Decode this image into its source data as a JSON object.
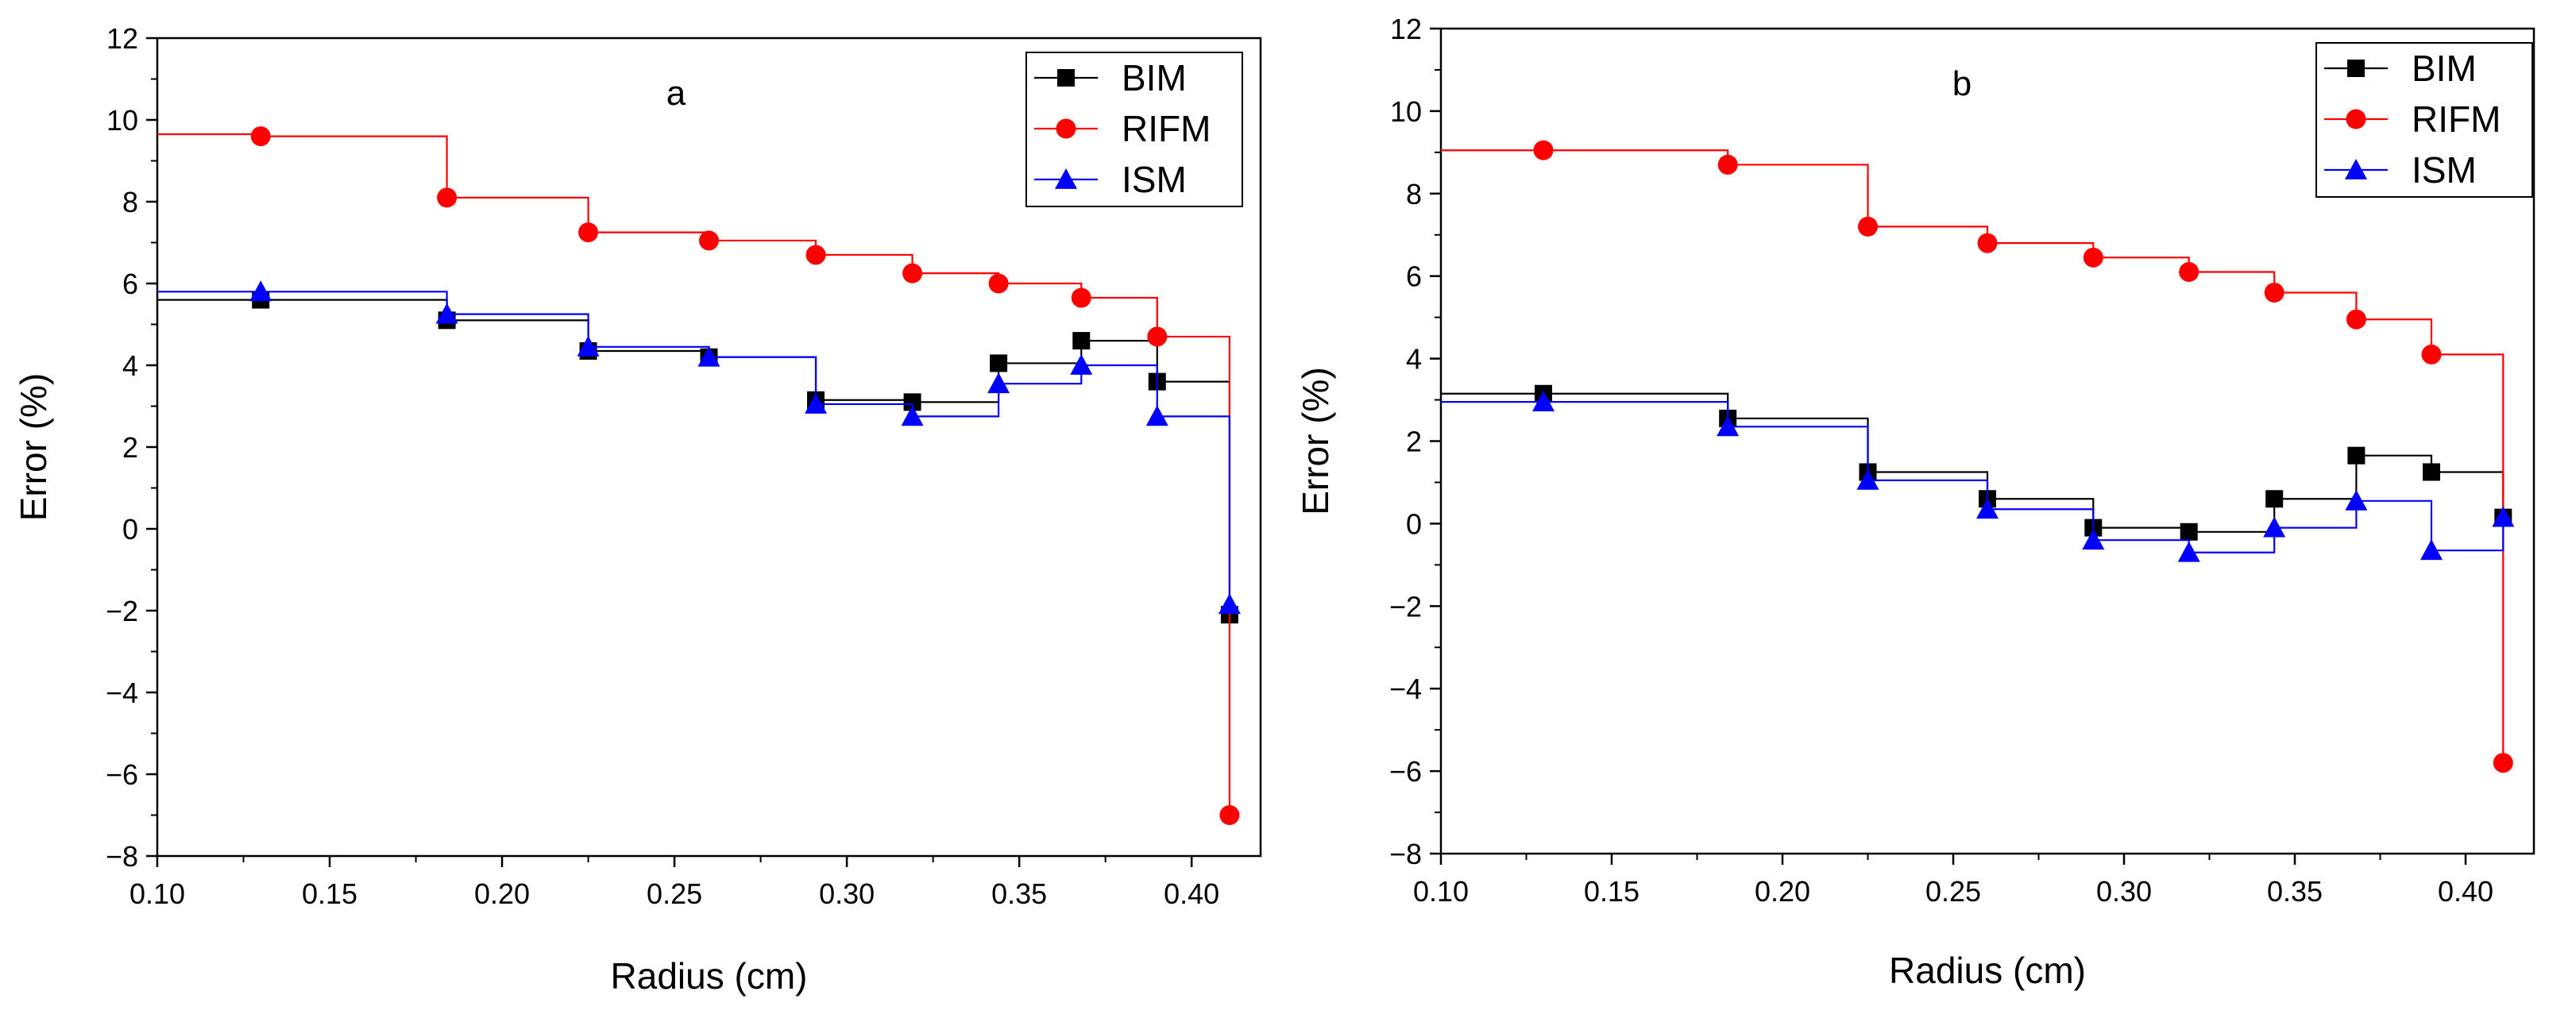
{
  "chart_data": [
    {
      "type": "line",
      "step": "hv",
      "title": "a",
      "xlabel": "Radius (cm)",
      "ylabel": "Error (%)",
      "xlim": [
        0.1,
        0.42
      ],
      "ylim": [
        -8,
        12
      ],
      "xticks": [
        "0.10",
        "0.15",
        "0.20",
        "0.25",
        "0.30",
        "0.35",
        "0.40"
      ],
      "yticks": [
        "−8",
        "−6",
        "−4",
        "−2",
        "0",
        "2",
        "4",
        "6",
        "8",
        "10",
        "12"
      ],
      "legend_position": "top-right",
      "x": [
        0.13,
        0.184,
        0.225,
        0.26,
        0.291,
        0.319,
        0.344,
        0.368,
        0.39,
        0.411
      ],
      "series": [
        {
          "name": "BIM",
          "color": "#000000",
          "marker": "square",
          "start": 5.6,
          "values": [
            5.6,
            5.1,
            4.35,
            4.2,
            3.15,
            3.1,
            4.05,
            4.6,
            3.6,
            -2.1
          ]
        },
        {
          "name": "RIFM",
          "color": "#ff0000",
          "marker": "circle",
          "start": 9.65,
          "values": [
            9.6,
            8.1,
            7.25,
            7.05,
            6.7,
            6.25,
            6.0,
            5.65,
            4.7,
            -7.0
          ]
        },
        {
          "name": "ISM",
          "color": "#0000ff",
          "marker": "triangle",
          "start": 5.8,
          "values": [
            5.8,
            5.25,
            4.45,
            4.2,
            3.05,
            2.75,
            3.55,
            4.0,
            2.75,
            -1.85
          ]
        }
      ]
    },
    {
      "type": "line",
      "step": "hv",
      "title": "b",
      "xlabel": "Radius (cm)",
      "ylabel": "Error (%)",
      "xlim": [
        0.1,
        0.42
      ],
      "ylim": [
        -8,
        12
      ],
      "xticks": [
        "0.10",
        "0.15",
        "0.20",
        "0.25",
        "0.30",
        "0.35",
        "0.40"
      ],
      "yticks": [
        "−8",
        "−6",
        "−4",
        "−2",
        "0",
        "2",
        "4",
        "6",
        "8",
        "10",
        "12"
      ],
      "legend_position": "top-right",
      "x": [
        0.13,
        0.184,
        0.225,
        0.26,
        0.291,
        0.319,
        0.344,
        0.368,
        0.39,
        0.411
      ],
      "series": [
        {
          "name": "BIM",
          "color": "#000000",
          "marker": "square",
          "start": 3.15,
          "values": [
            3.15,
            2.55,
            1.25,
            0.6,
            -0.1,
            -0.2,
            0.6,
            1.65,
            1.25,
            0.15
          ]
        },
        {
          "name": "RIFM",
          "color": "#ff0000",
          "marker": "circle",
          "start": 9.05,
          "values": [
            9.05,
            8.7,
            7.2,
            6.8,
            6.45,
            6.1,
            5.6,
            4.95,
            4.1,
            -5.8
          ]
        },
        {
          "name": "ISM",
          "color": "#0000ff",
          "marker": "triangle",
          "start": 2.95,
          "values": [
            2.95,
            2.35,
            1.05,
            0.35,
            -0.4,
            -0.7,
            -0.1,
            0.55,
            -0.65,
            0.15
          ]
        }
      ]
    }
  ]
}
